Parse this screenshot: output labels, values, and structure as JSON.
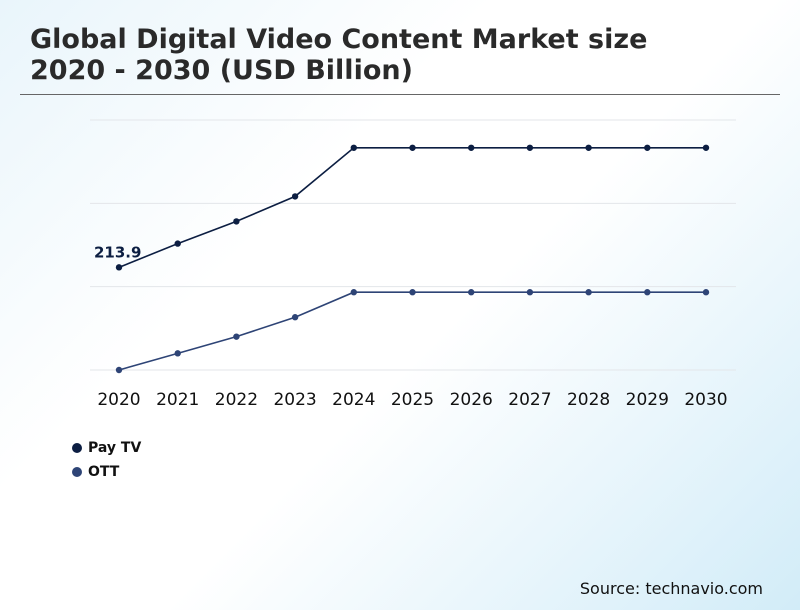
{
  "title_line1": "Global Digital Video Content Market size",
  "title_line2": "2020 - 2030 (USD Billion)",
  "source": "Source: technavio.com",
  "chart_data": {
    "type": "line",
    "title": "Global Digital Video Content Market size 2020 - 2030 (USD Billion)",
    "xlabel": "",
    "ylabel": "",
    "categories": [
      "2020",
      "2021",
      "2022",
      "2023",
      "2024",
      "2025",
      "2026",
      "2027",
      "2028",
      "2029",
      "2030"
    ],
    "ylim": [
      140,
      320
    ],
    "grid": true,
    "legend_position": "bottom-left",
    "series": [
      {
        "name": "Pay TV",
        "color": "#0c1e42",
        "values": [
          213.9,
          231,
          247,
          265,
          300,
          300,
          300,
          300,
          300,
          300,
          300
        ]
      },
      {
        "name": "OTT",
        "color": "#2e4476",
        "values": [
          140,
          152,
          164,
          178,
          196,
          196,
          196,
          196,
          196,
          196,
          196
        ]
      }
    ],
    "annotations": [
      {
        "series": 0,
        "index": 0,
        "text": "213.9"
      }
    ]
  }
}
